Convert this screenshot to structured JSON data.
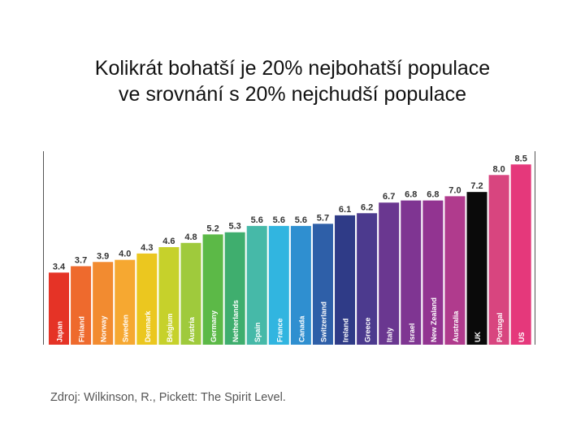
{
  "slide": {
    "title_line1": "Kolikrát bohatší je 20% nejbohatší populace",
    "title_line2": "ve srovnání s 20% nejchudší populace",
    "source": "Zdroj: Wilkinson, R., Pickett: The Spirit Level."
  },
  "chart_data": {
    "type": "bar",
    "title": "",
    "xlabel": "",
    "ylabel": "",
    "ylim": [
      0,
      9.2
    ],
    "grid": false,
    "categories": [
      "Japan",
      "Finland",
      "Norway",
      "Sweden",
      "Denmark",
      "Belgium",
      "Austria",
      "Germany",
      "Netherlands",
      "Spain",
      "France",
      "Canada",
      "Switzerland",
      "Ireland",
      "Greece",
      "Italy",
      "Israel",
      "New Zealand",
      "Australia",
      "UK",
      "Portugal",
      "US"
    ],
    "values": [
      3.4,
      3.7,
      3.9,
      4.0,
      4.3,
      4.6,
      4.8,
      5.2,
      5.3,
      5.6,
      5.6,
      5.6,
      5.7,
      6.1,
      6.2,
      6.7,
      6.8,
      6.8,
      7.0,
      7.2,
      8.0,
      8.5
    ],
    "value_labels": [
      "3.4",
      "3.7",
      "3.9",
      "4.0",
      "4.3",
      "4.6",
      "4.8",
      "5.2",
      "5.3",
      "5.6",
      "5.6",
      "5.6",
      "5.7",
      "6.1",
      "6.2",
      "6.7",
      "6.8",
      "6.8",
      "7.0",
      "7.2",
      "8.0",
      "8.5"
    ],
    "colors": [
      "#e53326",
      "#ee6a2d",
      "#f28b30",
      "#f6a831",
      "#ebc71f",
      "#c6d12b",
      "#9fca3c",
      "#5cb947",
      "#3fae6e",
      "#46b9a8",
      "#31b5e0",
      "#2f8fd0",
      "#2e5fa8",
      "#2f3b87",
      "#4c3a8e",
      "#6a3790",
      "#7f3592",
      "#923491",
      "#b03b8d",
      "#0a0a0a",
      "#d8457f",
      "#e5387b"
    ]
  }
}
